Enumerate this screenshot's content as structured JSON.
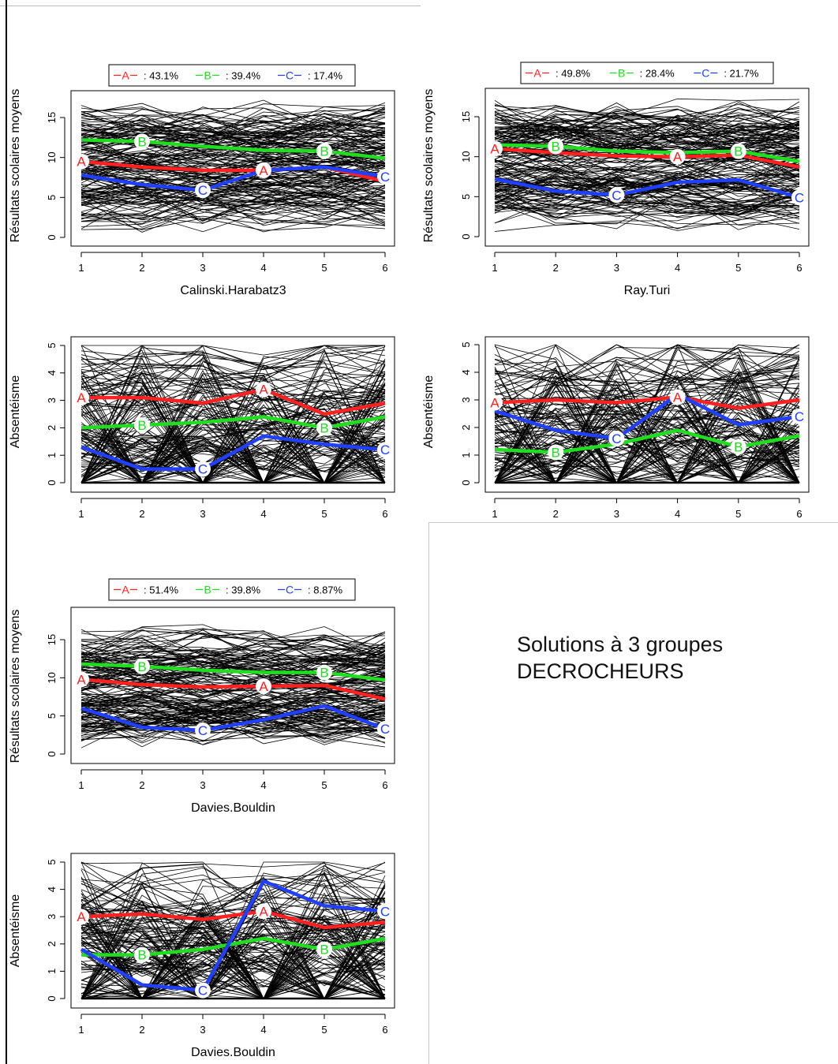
{
  "note": {
    "line1": "Solutions à 3 groupes",
    "line2": "DECROCHEURS"
  },
  "colors": {
    "A": "#ff2020",
    "B": "#20dd20",
    "C": "#2040ff",
    "background_lines": "#000000"
  },
  "chart_data": [
    {
      "type": "line",
      "xlabel": "Calinski.Harabatz3",
      "ylabel": "Résultats scolaires moyens",
      "x": [
        1,
        2,
        3,
        4,
        5,
        6
      ],
      "ylim": [
        0,
        17.5
      ],
      "yticks": [
        0,
        5,
        10,
        15
      ],
      "legend": {
        "position": "top",
        "entries": [
          {
            "label": "A",
            "pct": ": 43.1%"
          },
          {
            "label": "B",
            "pct": ": 39.4%"
          },
          {
            "label": "C",
            "pct": ": 17.4%"
          }
        ]
      },
      "series": [
        {
          "name": "A",
          "values": [
            9.5,
            8.8,
            8.4,
            8.4,
            8.8,
            7.0
          ],
          "markers": [
            1,
            4
          ]
        },
        {
          "name": "B",
          "values": [
            12.2,
            12.0,
            11.4,
            10.9,
            10.8,
            9.9
          ],
          "markers": [
            2,
            5
          ]
        },
        {
          "name": "C",
          "values": [
            7.8,
            6.6,
            5.9,
            8.4,
            8.8,
            7.6
          ],
          "markers": [
            3,
            6
          ]
        }
      ]
    },
    {
      "type": "line",
      "xlabel": "Ray.Turi",
      "ylabel": "Résultats scolaires moyens",
      "x": [
        1,
        2,
        3,
        4,
        5,
        6
      ],
      "ylim": [
        0,
        17.5
      ],
      "yticks": [
        0,
        5,
        10,
        15
      ],
      "legend": {
        "position": "top",
        "entries": [
          {
            "label": "A",
            "pct": ": 49.8%"
          },
          {
            "label": "B",
            "pct": ": 28.4%"
          },
          {
            "label": "C",
            "pct": ": 21.7%"
          }
        ]
      },
      "series": [
        {
          "name": "A",
          "values": [
            11.0,
            10.5,
            10.1,
            10.0,
            10.2,
            8.7
          ],
          "markers": [
            1,
            4
          ]
        },
        {
          "name": "B",
          "values": [
            11.5,
            11.3,
            10.7,
            10.5,
            10.7,
            9.4
          ],
          "markers": [
            2,
            5
          ]
        },
        {
          "name": "C",
          "values": [
            7.2,
            5.7,
            5.2,
            6.8,
            7.1,
            4.9
          ],
          "markers": [
            3,
            6
          ]
        }
      ]
    },
    {
      "type": "line",
      "xlabel": "",
      "ylabel": "Absentéisme",
      "x": [
        1,
        2,
        3,
        4,
        5,
        6
      ],
      "ylim": [
        0,
        5
      ],
      "yticks": [
        0,
        1,
        2,
        3,
        4,
        5
      ],
      "series": [
        {
          "name": "A",
          "values": [
            3.1,
            3.1,
            2.9,
            3.4,
            2.5,
            2.9
          ],
          "markers": [
            1,
            4
          ]
        },
        {
          "name": "B",
          "values": [
            2.0,
            2.1,
            2.2,
            2.4,
            2.0,
            2.4
          ],
          "markers": [
            2,
            5
          ]
        },
        {
          "name": "C",
          "values": [
            1.3,
            0.5,
            0.5,
            1.7,
            1.4,
            1.2
          ],
          "markers": [
            3,
            6
          ]
        }
      ]
    },
    {
      "type": "line",
      "xlabel": "",
      "ylabel": "Absentéisme",
      "x": [
        1,
        2,
        3,
        4,
        5,
        6
      ],
      "ylim": [
        0,
        5
      ],
      "yticks": [
        0,
        1,
        2,
        3,
        4,
        5
      ],
      "series": [
        {
          "name": "A",
          "values": [
            2.9,
            3.0,
            2.9,
            3.1,
            2.7,
            3.0
          ],
          "markers": [
            1,
            4
          ]
        },
        {
          "name": "B",
          "values": [
            1.2,
            1.1,
            1.4,
            1.9,
            1.3,
            1.7
          ],
          "markers": [
            2,
            5
          ]
        },
        {
          "name": "C",
          "values": [
            2.6,
            1.9,
            1.6,
            3.2,
            2.1,
            2.4
          ],
          "markers": [
            3,
            6
          ]
        }
      ]
    },
    {
      "type": "line",
      "xlabel": "Davies.Bouldin",
      "ylabel": "Résultats scolaires moyens",
      "x": [
        1,
        2,
        3,
        4,
        5,
        6
      ],
      "ylim": [
        0,
        17.5
      ],
      "yticks": [
        0,
        5,
        10,
        15
      ],
      "legend": {
        "position": "top",
        "entries": [
          {
            "label": "A",
            "pct": ": 51.4%"
          },
          {
            "label": "B",
            "pct": ": 39.8%"
          },
          {
            "label": "C",
            "pct": ": 8.87%"
          }
        ]
      },
      "series": [
        {
          "name": "A",
          "values": [
            9.8,
            9.1,
            8.8,
            8.9,
            9.0,
            7.2
          ],
          "markers": [
            1,
            4
          ]
        },
        {
          "name": "B",
          "values": [
            11.8,
            11.5,
            11.0,
            10.7,
            10.7,
            9.7
          ],
          "markers": [
            2,
            5
          ]
        },
        {
          "name": "C",
          "values": [
            6.0,
            3.5,
            3.1,
            4.5,
            6.3,
            3.3
          ],
          "markers": [
            3,
            6
          ]
        }
      ]
    },
    {
      "type": "line",
      "xlabel": "Davies.Bouldin",
      "ylabel": "Absentéisme",
      "x": [
        1,
        2,
        3,
        4,
        5,
        6
      ],
      "ylim": [
        0,
        5
      ],
      "yticks": [
        0,
        1,
        2,
        3,
        4,
        5
      ],
      "series": [
        {
          "name": "A",
          "values": [
            3.0,
            3.1,
            2.9,
            3.2,
            2.6,
            2.8
          ],
          "markers": [
            1,
            4
          ]
        },
        {
          "name": "B",
          "values": [
            1.6,
            1.6,
            1.8,
            2.2,
            1.8,
            2.2
          ],
          "markers": [
            2,
            5
          ]
        },
        {
          "name": "C",
          "values": [
            1.8,
            0.5,
            0.3,
            4.3,
            3.4,
            3.2
          ],
          "markers": [
            3,
            6
          ]
        }
      ]
    }
  ]
}
